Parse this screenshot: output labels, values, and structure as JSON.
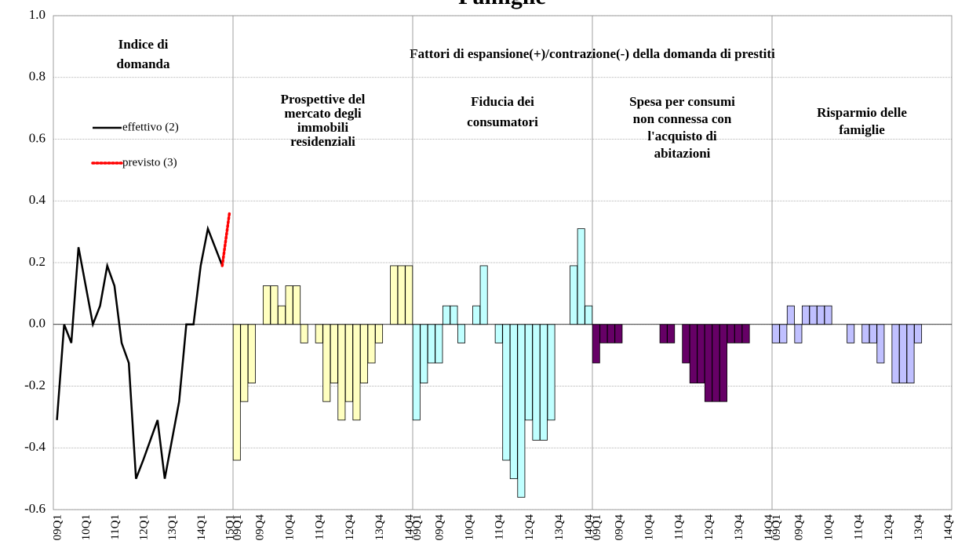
{
  "chart_data": [
    {
      "type": "line",
      "title": "Famiglie",
      "ylim": [
        -0.6,
        1.0
      ],
      "yticks": [
        -0.6,
        -0.4,
        -0.2,
        {
          "value": 0,
          "label": "0.0"
        },
        0.2,
        0.4,
        0.6,
        0.8,
        {
          "value": 1,
          "label": "1.0"
        }
      ],
      "grid": true,
      "heading": [
        "Indice di",
        "domanda"
      ],
      "group_heading": "Fattori di espansione(+)/contrazione(-) della domanda di prestiti",
      "categories": [
        "09Q1",
        null,
        null,
        null,
        "10Q1",
        null,
        null,
        null,
        "11Q1",
        null,
        null,
        null,
        "12Q1",
        null,
        null,
        null,
        "13Q1",
        null,
        null,
        null,
        "14Q1",
        null,
        null,
        null,
        "15Q1"
      ],
      "series": [
        {
          "name": "effettivo (2)",
          "color": "#000000",
          "values": [
            -0.31,
            0,
            -0.06,
            0.25,
            0.125,
            0,
            0.06,
            0.19,
            0.125,
            -0.06,
            -0.125,
            -0.5,
            -0.44,
            -0.375,
            -0.31,
            -0.5,
            -0.375,
            -0.25,
            0,
            0,
            0.19,
            0.31,
            0.25,
            0.19,
            null
          ]
        },
        {
          "name": "previsto (3)",
          "color": "#ff0000",
          "values": [
            null,
            null,
            null,
            null,
            null,
            null,
            null,
            null,
            null,
            null,
            null,
            null,
            null,
            null,
            null,
            null,
            null,
            null,
            null,
            null,
            null,
            null,
            null,
            0.19,
            0.36
          ]
        }
      ]
    },
    {
      "type": "bar",
      "heading": [
        "Prospettive del",
        "mercato degli",
        "immobili",
        "residenziali"
      ],
      "color": "#ffffc0",
      "categories": [
        "09Q1",
        null,
        null,
        "09Q4",
        null,
        null,
        null,
        "10Q4",
        null,
        null,
        null,
        "11Q4",
        null,
        null,
        null,
        "12Q4",
        null,
        null,
        null,
        "13Q4",
        null,
        null,
        null,
        "14Q4"
      ],
      "values": [
        -0.44,
        -0.25,
        -0.19,
        0,
        0.125,
        0.125,
        0.06,
        0.125,
        0.125,
        -0.06,
        0,
        -0.06,
        -0.25,
        -0.19,
        -0.31,
        -0.25,
        -0.31,
        -0.19,
        -0.125,
        -0.06,
        0,
        0.19,
        0.19,
        0.19
      ]
    },
    {
      "type": "bar",
      "heading": [
        "Fiducia dei",
        "consumatori"
      ],
      "color": "#c0ffff",
      "categories": [
        "09Q1",
        null,
        null,
        "09Q4",
        null,
        null,
        null,
        "10Q4",
        null,
        null,
        null,
        "11Q4",
        null,
        null,
        null,
        "12Q4",
        null,
        null,
        null,
        "13Q4",
        null,
        null,
        null,
        "14Q4"
      ],
      "values": [
        -0.31,
        -0.19,
        -0.125,
        -0.125,
        0.06,
        0.06,
        -0.06,
        0,
        0.06,
        0.19,
        0,
        -0.06,
        -0.44,
        -0.5,
        -0.56,
        -0.31,
        -0.375,
        -0.375,
        -0.31,
        0,
        0,
        0.19,
        0.31,
        0.06
      ]
    },
    {
      "type": "bar",
      "heading": [
        "Spesa per consumi",
        "non connessa con",
        "l'acquisto di",
        "abitazioni"
      ],
      "color": "#660066",
      "categories": [
        "09Q1",
        null,
        null,
        "09Q4",
        null,
        null,
        null,
        "10Q4",
        null,
        null,
        null,
        "11Q4",
        null,
        null,
        null,
        "12Q4",
        null,
        null,
        null,
        "13Q4",
        null,
        null,
        null,
        "14Q4"
      ],
      "values": [
        -0.125,
        -0.06,
        -0.06,
        -0.06,
        0,
        0,
        0,
        0,
        0,
        -0.06,
        -0.06,
        0,
        -0.125,
        -0.19,
        -0.19,
        -0.25,
        -0.25,
        -0.25,
        -0.06,
        -0.06,
        -0.06,
        0,
        0,
        0
      ]
    },
    {
      "type": "bar",
      "heading": [
        "Risparmio delle",
        "famiglie"
      ],
      "color": "#c0c0ff",
      "categories": [
        "09Q1",
        null,
        null,
        "09Q4",
        null,
        null,
        null,
        "10Q4",
        null,
        null,
        null,
        "11Q4",
        null,
        null,
        null,
        "12Q4",
        null,
        null,
        null,
        "13Q4",
        null,
        null,
        null,
        "14Q4"
      ],
      "values": [
        -0.06,
        -0.06,
        0.06,
        -0.06,
        0.06,
        0.06,
        0.06,
        0.06,
        0,
        0,
        -0.06,
        0,
        -0.06,
        -0.06,
        -0.125,
        0,
        -0.19,
        -0.19,
        -0.19,
        -0.06,
        0,
        0,
        0,
        0
      ]
    }
  ]
}
